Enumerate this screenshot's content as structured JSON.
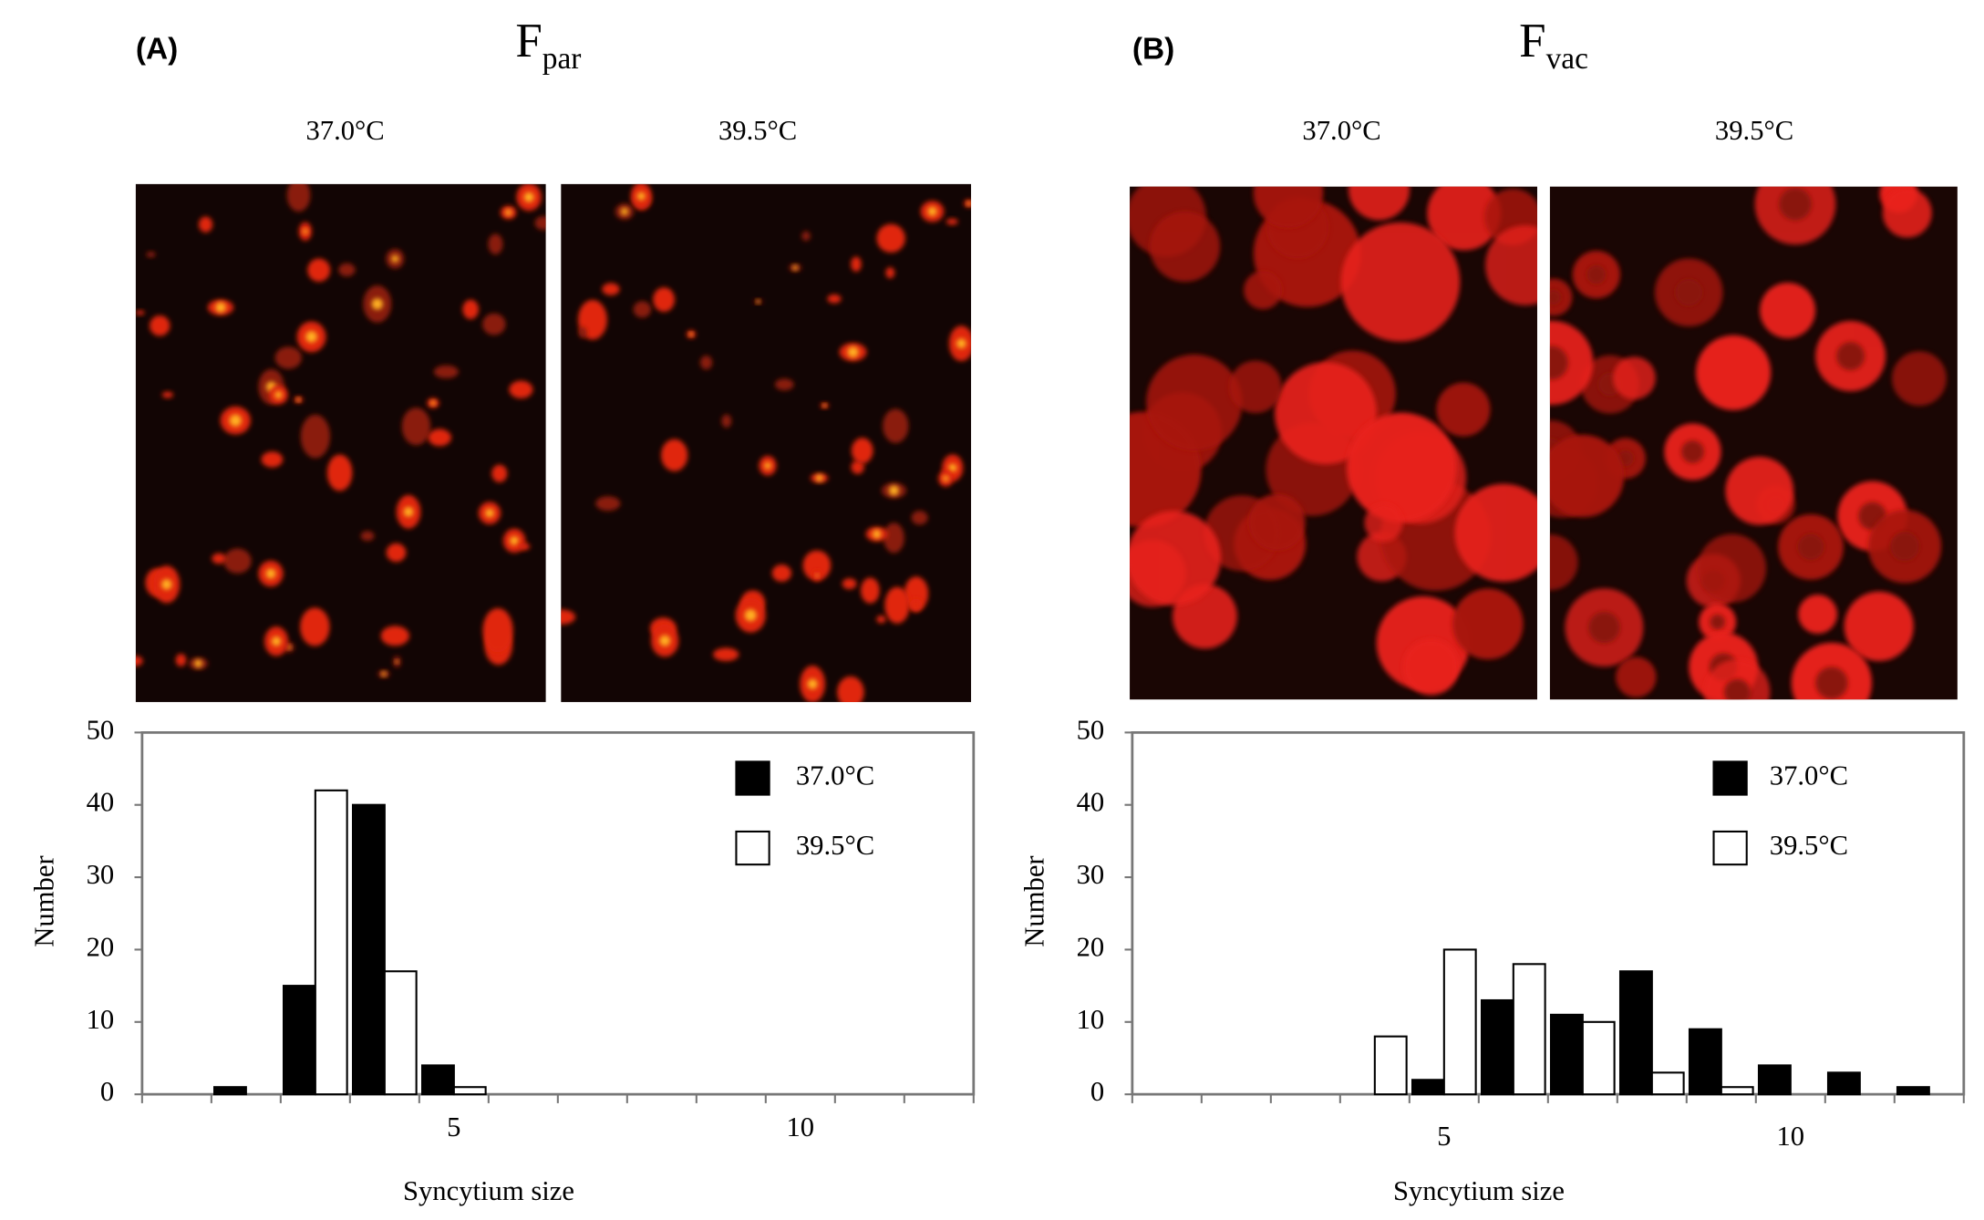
{
  "chart_data": [
    {
      "type": "bar",
      "panel_label": "(A)",
      "title": "F",
      "title_subscript": "par",
      "image_labels": [
        "37.0°C",
        "39.5°C"
      ],
      "categories": [
        null,
        null,
        null,
        null,
        "5",
        null,
        null,
        null,
        null,
        "10",
        null,
        null
      ],
      "series": [
        {
          "name": "37.0°C",
          "color": "#000000",
          "values": [
            0,
            1,
            15,
            40,
            4,
            0,
            0,
            0,
            0,
            0,
            0,
            0
          ]
        },
        {
          "name": "39.5°C",
          "color": "#ffffff",
          "values": [
            0,
            0,
            42,
            17,
            1,
            0,
            0,
            0,
            0,
            0,
            0,
            0
          ]
        }
      ],
      "xlabel": "Syncytium size",
      "ylabel": "Number",
      "ylim": [
        0,
        50
      ],
      "yticks": [
        0,
        10,
        20,
        30,
        40,
        50
      ]
    },
    {
      "type": "bar",
      "panel_label": "(B)",
      "title": "F",
      "title_subscript": "vac",
      "image_labels": [
        "37.0°C",
        "39.5°C"
      ],
      "categories": [
        null,
        null,
        null,
        null,
        "5",
        null,
        null,
        null,
        null,
        "10",
        null,
        null
      ],
      "series": [
        {
          "name": "37.0°C",
          "color": "#000000",
          "values": [
            0,
            0,
            0,
            0,
            2,
            13,
            11,
            17,
            9,
            4,
            3,
            1
          ]
        },
        {
          "name": "39.5°C",
          "color": "#ffffff",
          "values": [
            0,
            0,
            0,
            8,
            20,
            18,
            10,
            3,
            1,
            0,
            0,
            0
          ]
        }
      ],
      "xlabel": "Syncytium size",
      "ylabel": "Number",
      "ylim": [
        0,
        50
      ],
      "yticks": [
        0,
        10,
        20,
        30,
        40,
        50
      ]
    }
  ]
}
